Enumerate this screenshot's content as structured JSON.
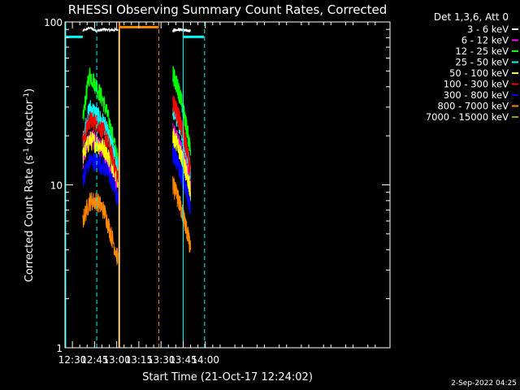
{
  "chart_data": {
    "type": "line",
    "title": "RHESSI Observing Summary Count Rates, Corrected",
    "xlabel": "Start Time (21-Oct-17 12:24:02)",
    "ylabel_main": "Corrected Count Rate (s",
    "ylabel_sup": "-1",
    "ylabel_mid": " detector",
    "ylabel_sup2": "-1",
    "ylabel_end": ")",
    "y_scale": "log",
    "ylim": [
      1,
      100
    ],
    "xlim_min": [
      745,
      965
    ],
    "x_ticks": [
      {
        "value": 750,
        "label": "12:30"
      },
      {
        "value": 765,
        "label": "12:45"
      },
      {
        "value": 780,
        "label": "13:00"
      },
      {
        "value": 795,
        "label": "13:15"
      },
      {
        "value": 810,
        "label": "13:30"
      },
      {
        "value": 825,
        "label": "13:45"
      },
      {
        "value": 840,
        "label": "14:00"
      }
    ],
    "y_ticks": [
      {
        "value": 1,
        "label": "1"
      },
      {
        "value": 10,
        "label": "10"
      },
      {
        "value": 100,
        "label": "100"
      }
    ],
    "legend_header": "Det 1,3,6, Att 0",
    "legend_position": "top-right",
    "series": [
      {
        "name": "3 - 6 keV",
        "color": "#ffffff"
      },
      {
        "name": "6 - 12 keV",
        "color": "#ff00ff"
      },
      {
        "name": "12 - 25 keV",
        "color": "#00ff00"
      },
      {
        "name": "25 - 50 keV",
        "color": "#00ffff"
      },
      {
        "name": "50 - 100 keV",
        "color": "#ffff00"
      },
      {
        "name": "100 - 300 keV",
        "color": "#ff0000"
      },
      {
        "name": "300 - 800 keV",
        "color": "#0000ff"
      },
      {
        "name": "800 - 7000 keV",
        "color": "#ff8800"
      },
      {
        "name": "7000 - 15000 keV",
        "color": "#88aa00"
      }
    ],
    "observation_segments": [
      {
        "start": 757,
        "end": 780.8,
        "levels": {
          "3 - 6 keV": [
            88,
            92,
            88,
            90,
            89,
            90
          ],
          "6 - 12 keV": [
            14,
            20,
            18,
            16,
            12,
            10
          ],
          "12 - 25 keV": [
            24,
            48,
            40,
            32,
            22,
            14
          ],
          "25 - 50 keV": [
            18,
            30,
            27,
            24,
            18,
            13
          ],
          "50 - 100 keV": [
            15,
            19,
            18,
            17,
            14,
            11
          ],
          "100 - 300 keV": [
            18,
            25,
            24,
            21,
            16,
            11
          ],
          "300 - 800 keV": [
            11,
            14,
            14,
            13,
            11,
            8
          ],
          "800 - 7000 keV": [
            6,
            8,
            8,
            7,
            5,
            3.5
          ]
        }
      },
      {
        "start": 818,
        "end": 830,
        "levels": {
          "3 - 6 keV": [
            88,
            90,
            89,
            88
          ],
          "6 - 12 keV": [
            22,
            18,
            14,
            10
          ],
          "12 - 25 keV": [
            48,
            38,
            26,
            16
          ],
          "25 - 50 keV": [
            30,
            24,
            18,
            12
          ],
          "50 - 100 keV": [
            20,
            17,
            13,
            9
          ],
          "100 - 300 keV": [
            32,
            26,
            19,
            12
          ],
          "300 - 800 keV": [
            16,
            13,
            10,
            7
          ],
          "800 - 7000 keV": [
            10,
            8,
            6,
            4
          ]
        }
      }
    ],
    "attenuator_level": 80,
    "saa_levels": 90,
    "orange_flag_start": 781.5,
    "orange_flag_end": 808.5,
    "orange_flag_level": 93,
    "cyan_flag_segments": [
      [
        745,
        757
      ],
      [
        825,
        839
      ]
    ],
    "cyan_dashed_times": [
      766.5,
      839.5
    ],
    "cyan_solid_times": [
      745.5,
      825
    ],
    "orange_solid_times": [
      781.8
    ],
    "orange_dashed_times": [
      808.5
    ],
    "white_solid_times": [
      781.5
    ]
  },
  "footer_timestamp": "2-Sep-2022 04:25"
}
